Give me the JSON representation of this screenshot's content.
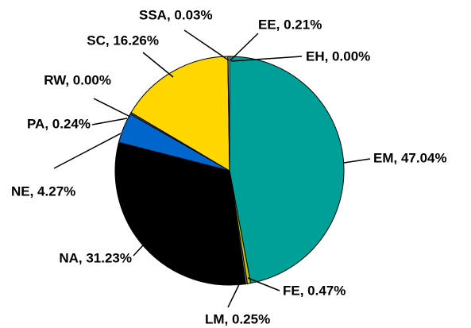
{
  "chart_data": {
    "type": "pie",
    "values": [
      47.04,
      0.47,
      0.25,
      31.23,
      4.27,
      0.24,
      0.0,
      16.26,
      0.03,
      0.21,
      0.0
    ],
    "value_labels": [
      "EM, 47.04%",
      "FE, 0.47%",
      "LM, 0.25%",
      "NA, 31.23%",
      "NE, 4.27%",
      "PA, 0.24%",
      "RW, 0.00%",
      "SC, 16.26%",
      "SSA, 0.03%",
      "EE, 0.21%",
      "EH, 0.00%"
    ],
    "colors": [
      "#00a099",
      "#c8c400",
      "#7a7a7a",
      "#000000",
      "#0066cc",
      "#555555",
      "#ffffff",
      "#ffd700",
      "#999999",
      "#ffffff",
      "#cccccc"
    ]
  }
}
